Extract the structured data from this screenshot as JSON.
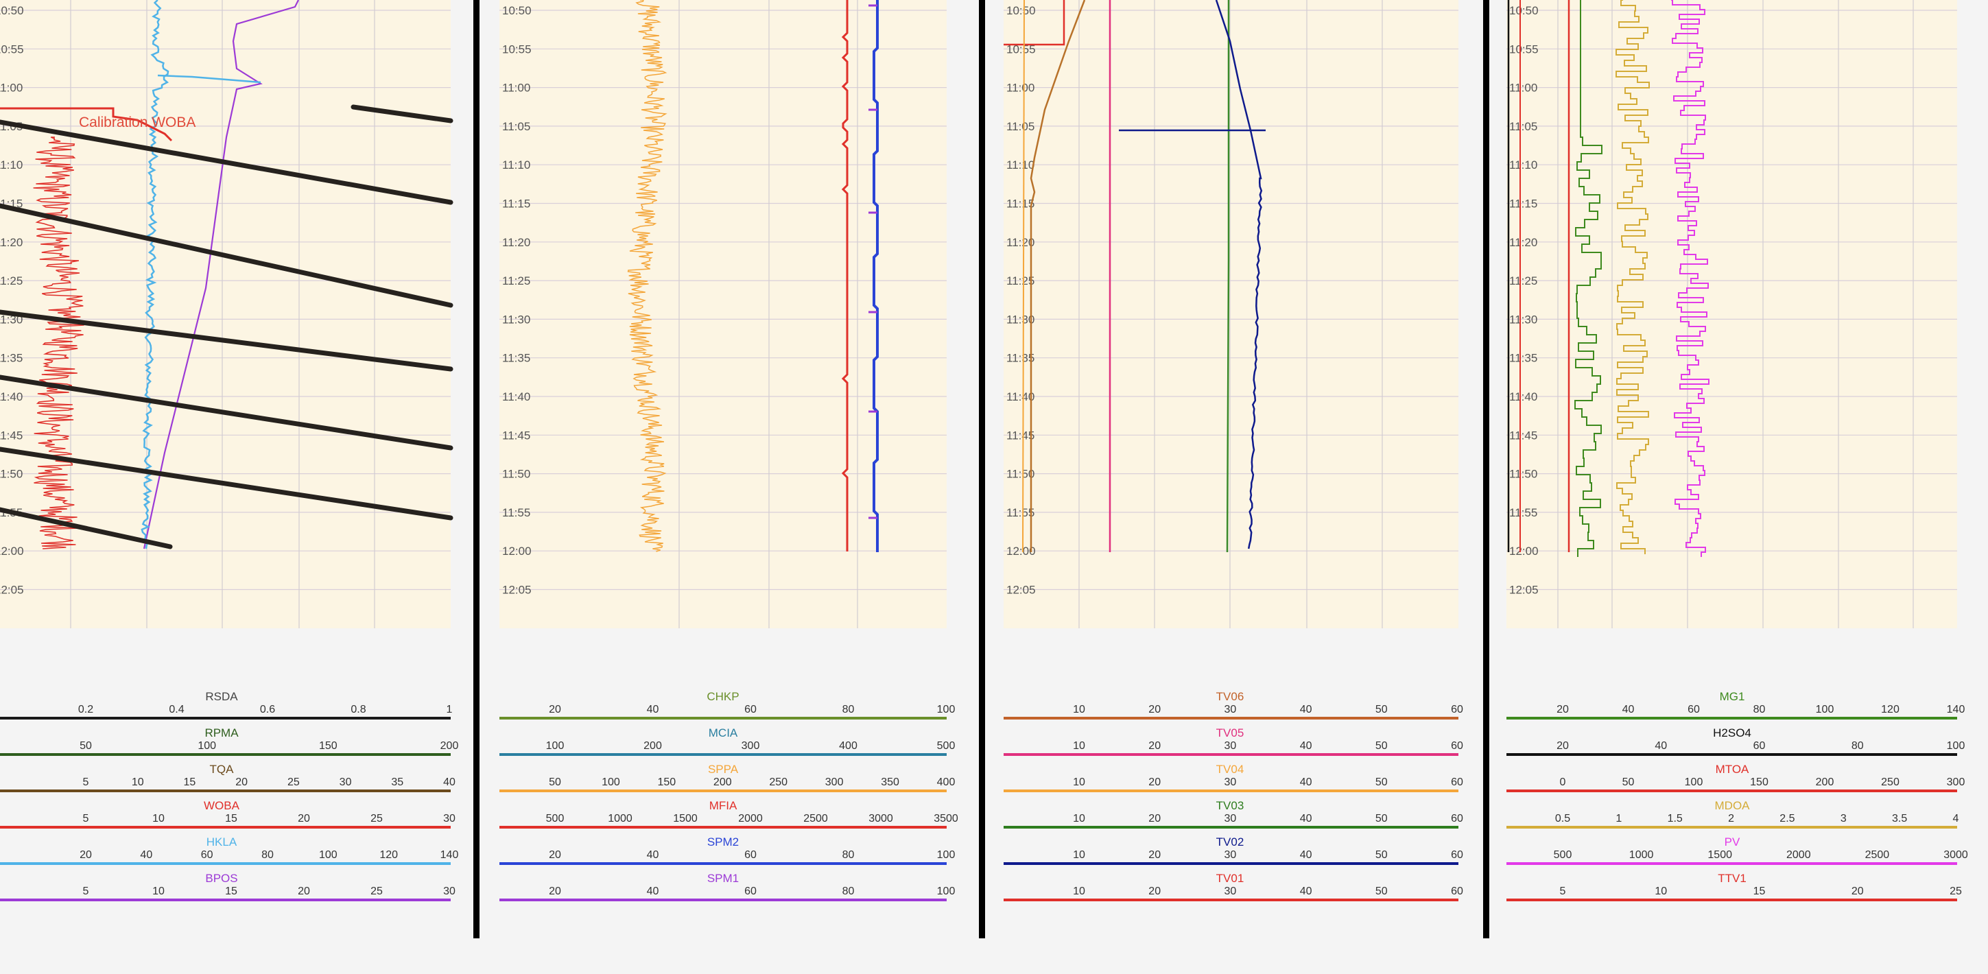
{
  "time_labels": [
    "10:50",
    "10:55",
    "11:00",
    "11:05",
    "11:10",
    "11:15",
    "11:20",
    "11:25",
    "11:30",
    "11:35",
    "11:40",
    "11:45",
    "11:50",
    "11:55",
    "12:00",
    "12:05"
  ],
  "annotation": "Calibration WOBA",
  "panels": [
    {
      "id": "panel-1",
      "scales": [
        {
          "name": "RSDA",
          "color": "#1a1a1a",
          "label_color": "#444444",
          "ticks": [
            "0.2",
            "0.4",
            "0.6",
            "0.8",
            "1"
          ]
        },
        {
          "name": "RPMA",
          "color": "#2e5e1e",
          "label_color": "#2e5e1e",
          "ticks": [
            "50",
            "100",
            "150",
            "200"
          ]
        },
        {
          "name": "TQA",
          "color": "#6b4a1c",
          "label_color": "#6b4a1c",
          "ticks": [
            "5",
            "10",
            "15",
            "20",
            "25",
            "30",
            "35",
            "40"
          ]
        },
        {
          "name": "WOBA",
          "color": "#e0302a",
          "label_color": "#e0302a",
          "ticks": [
            "5",
            "10",
            "15",
            "20",
            "25",
            "30"
          ]
        },
        {
          "name": "HKLA",
          "color": "#4fb3e8",
          "label_color": "#4fb3e8",
          "ticks": [
            "20",
            "40",
            "60",
            "80",
            "100",
            "120",
            "140"
          ]
        },
        {
          "name": "BPOS",
          "color": "#9c3ad6",
          "label_color": "#9c3ad6",
          "ticks": [
            "5",
            "10",
            "15",
            "20",
            "25",
            "30"
          ]
        }
      ]
    },
    {
      "id": "panel-2",
      "scales": [
        {
          "name": "CHKP",
          "color": "#6a8f2a",
          "label_color": "#6a8f2a",
          "ticks": [
            "20",
            "40",
            "60",
            "80",
            "100"
          ]
        },
        {
          "name": "MCIA",
          "color": "#2a7fa0",
          "label_color": "#2a7fa0",
          "ticks": [
            "100",
            "200",
            "300",
            "400",
            "500"
          ]
        },
        {
          "name": "SPPA",
          "color": "#f4a63a",
          "label_color": "#f4a63a",
          "ticks": [
            "50",
            "100",
            "150",
            "200",
            "250",
            "300",
            "350",
            "400"
          ]
        },
        {
          "name": "MFIA",
          "color": "#e0302a",
          "label_color": "#e0302a",
          "ticks": [
            "500",
            "1000",
            "1500",
            "2000",
            "2500",
            "3000",
            "3500"
          ]
        },
        {
          "name": "SPM2",
          "color": "#2a44d6",
          "label_color": "#2a44d6",
          "ticks": [
            "20",
            "40",
            "60",
            "80",
            "100"
          ]
        },
        {
          "name": "SPM1",
          "color": "#9c3ad6",
          "label_color": "#9c3ad6",
          "ticks": [
            "20",
            "40",
            "60",
            "80",
            "100"
          ]
        }
      ]
    },
    {
      "id": "panel-3",
      "scales": [
        {
          "name": "TV06",
          "color": "#c2622a",
          "label_color": "#c2622a",
          "ticks": [
            "10",
            "20",
            "30",
            "40",
            "50",
            "60"
          ]
        },
        {
          "name": "TV05",
          "color": "#e0307e",
          "label_color": "#e0307e",
          "ticks": [
            "10",
            "20",
            "30",
            "40",
            "50",
            "60"
          ]
        },
        {
          "name": "TV04",
          "color": "#f4a63a",
          "label_color": "#f4a63a",
          "ticks": [
            "10",
            "20",
            "30",
            "40",
            "50",
            "60"
          ]
        },
        {
          "name": "TV03",
          "color": "#2e7d1e",
          "label_color": "#2e7d1e",
          "ticks": [
            "10",
            "20",
            "30",
            "40",
            "50",
            "60"
          ]
        },
        {
          "name": "TV02",
          "color": "#0e1a8c",
          "label_color": "#0e1a8c",
          "ticks": [
            "10",
            "20",
            "30",
            "40",
            "50",
            "60"
          ]
        },
        {
          "name": "TV01",
          "color": "#e0302a",
          "label_color": "#e0302a",
          "ticks": [
            "10",
            "20",
            "30",
            "40",
            "50",
            "60"
          ]
        }
      ]
    },
    {
      "id": "panel-4",
      "scales": [
        {
          "name": "MG1",
          "color": "#3e8a1e",
          "label_color": "#3e8a1e",
          "ticks": [
            "20",
            "40",
            "60",
            "80",
            "100",
            "120",
            "140"
          ]
        },
        {
          "name": "H2SO4",
          "color": "#111111",
          "label_color": "#111111",
          "ticks": [
            "20",
            "40",
            "60",
            "80",
            "100"
          ]
        },
        {
          "name": "MTOA",
          "color": "#e0302a",
          "label_color": "#e0302a",
          "ticks": [
            "0",
            "50",
            "100",
            "150",
            "200",
            "250",
            "300"
          ]
        },
        {
          "name": "MDOA",
          "color": "#d4ac38",
          "label_color": "#d4ac38",
          "ticks": [
            "0.5",
            "1",
            "1.5",
            "2",
            "2.5",
            "3",
            "3.5",
            "4"
          ]
        },
        {
          "name": "PV",
          "color": "#e23ae8",
          "label_color": "#e23ae8",
          "ticks": [
            "500",
            "1000",
            "1500",
            "2000",
            "2500",
            "3000"
          ]
        },
        {
          "name": "TTV1",
          "color": "#e0302a",
          "label_color": "#e0302a",
          "ticks": [
            "5",
            "10",
            "15",
            "20",
            "25"
          ]
        }
      ]
    }
  ]
}
